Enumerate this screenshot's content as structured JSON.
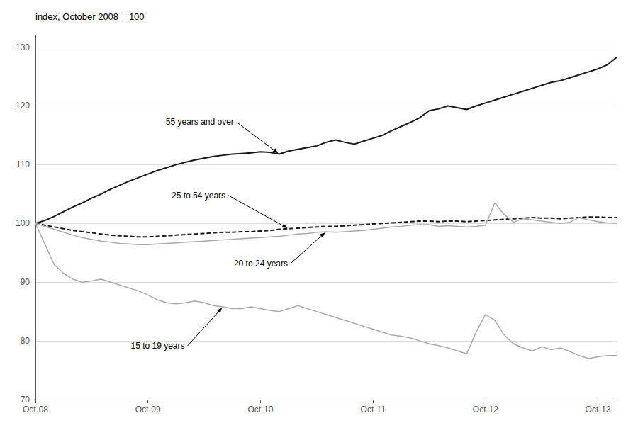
{
  "chart_data": {
    "type": "line",
    "title": "index, October 2008 = 100",
    "categories": [
      "Oct-08",
      null,
      null,
      null,
      null,
      null,
      null,
      null,
      null,
      null,
      null,
      null,
      "Oct-09",
      null,
      null,
      null,
      null,
      null,
      null,
      null,
      null,
      null,
      null,
      null,
      "Oct-10",
      null,
      null,
      null,
      null,
      null,
      null,
      null,
      null,
      null,
      null,
      null,
      "Oct-11",
      null,
      null,
      null,
      null,
      null,
      null,
      null,
      null,
      null,
      null,
      null,
      "Oct-12",
      null,
      null,
      null,
      null,
      null,
      null,
      null,
      null,
      null,
      null,
      null,
      "Oct-13",
      null,
      null
    ],
    "series": [
      {
        "name": "55 years and over",
        "color": "#1a1a1a",
        "line_style": "solid",
        "values": [
          100.0,
          100.5,
          101.2,
          102.0,
          102.8,
          103.5,
          104.3,
          105.0,
          105.8,
          106.5,
          107.2,
          107.8,
          108.4,
          109.0,
          109.5,
          110.0,
          110.4,
          110.8,
          111.1,
          111.4,
          111.6,
          111.8,
          111.9,
          112.0,
          112.2,
          112.1,
          111.8,
          112.3,
          112.6,
          112.9,
          113.2,
          113.8,
          114.2,
          113.8,
          113.5,
          114.0,
          114.5,
          115.0,
          115.8,
          116.5,
          117.2,
          118.0,
          119.2,
          119.5,
          120.0,
          119.7,
          119.4,
          120.0,
          120.5,
          121.0,
          121.5,
          122.0,
          122.5,
          123.0,
          123.5,
          124.0,
          124.3,
          124.8,
          125.3,
          125.8,
          126.3,
          127.0,
          128.3
        ]
      },
      {
        "name": "25 to 54 years",
        "color": "#1a1a1a",
        "line_style": "dashed",
        "values": [
          100.0,
          99.7,
          99.4,
          99.1,
          98.8,
          98.6,
          98.4,
          98.2,
          98.0,
          97.9,
          97.8,
          97.7,
          97.7,
          97.8,
          97.9,
          98.0,
          98.1,
          98.2,
          98.3,
          98.4,
          98.5,
          98.5,
          98.6,
          98.6,
          98.7,
          98.8,
          99.0,
          99.1,
          99.2,
          99.3,
          99.4,
          99.5,
          99.5,
          99.6,
          99.7,
          99.8,
          99.9,
          100.0,
          100.1,
          100.2,
          100.3,
          100.4,
          100.4,
          100.3,
          100.4,
          100.4,
          100.3,
          100.4,
          100.5,
          100.6,
          100.7,
          100.8,
          100.9,
          101.0,
          100.9,
          100.9,
          100.8,
          100.9,
          101.0,
          101.1,
          101.1,
          101.0,
          101.0
        ]
      },
      {
        "name": "20 to 24 years",
        "color": "#aaaaaa",
        "line_style": "solid",
        "values": [
          100.0,
          99.5,
          99.0,
          98.5,
          98.0,
          97.6,
          97.3,
          97.0,
          96.8,
          96.6,
          96.5,
          96.4,
          96.4,
          96.5,
          96.6,
          96.7,
          96.8,
          96.9,
          97.0,
          97.1,
          97.2,
          97.3,
          97.4,
          97.5,
          97.6,
          97.7,
          97.8,
          98.0,
          98.2,
          98.3,
          98.5,
          98.6,
          98.5,
          98.6,
          98.7,
          98.8,
          99.0,
          99.2,
          99.4,
          99.5,
          99.7,
          99.8,
          99.8,
          99.5,
          99.6,
          99.5,
          99.4,
          99.5,
          99.7,
          103.5,
          101.5,
          100.2,
          100.8,
          100.6,
          100.4,
          100.2,
          100.0,
          100.2,
          101.0,
          100.6,
          100.3,
          100.1,
          100.0
        ]
      },
      {
        "name": "15 to 19 years",
        "color": "#aaaaaa",
        "line_style": "solid",
        "values": [
          100.0,
          96.5,
          93.0,
          91.5,
          90.5,
          90.0,
          90.2,
          90.5,
          90.0,
          89.5,
          89.0,
          88.5,
          87.8,
          87.0,
          86.5,
          86.3,
          86.5,
          86.8,
          86.5,
          86.0,
          85.8,
          85.5,
          85.5,
          85.8,
          85.5,
          85.2,
          85.0,
          85.5,
          86.0,
          85.5,
          85.0,
          84.5,
          84.0,
          83.5,
          83.0,
          82.5,
          82.0,
          81.5,
          81.0,
          80.8,
          80.5,
          80.0,
          79.5,
          79.2,
          78.8,
          78.3,
          77.8,
          81.5,
          84.5,
          83.5,
          81.0,
          79.5,
          78.8,
          78.3,
          79.0,
          78.5,
          78.8,
          78.2,
          77.5,
          77.0,
          77.3,
          77.5,
          77.5
        ]
      }
    ],
    "ylim": [
      70,
      132
    ],
    "yticks": [
      70,
      80,
      90,
      100,
      110,
      120,
      130
    ],
    "grid": true
  }
}
